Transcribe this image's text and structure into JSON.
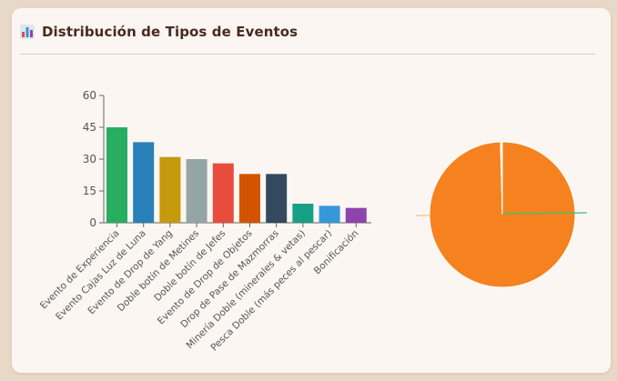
{
  "card": {
    "title": "Distribución de Tipos de Eventos",
    "icon": "bar-chart-icon"
  },
  "chart_data": [
    {
      "type": "bar",
      "title": "",
      "xlabel": "",
      "ylabel": "",
      "ylim": [
        0,
        60
      ],
      "yticks": [
        0,
        15,
        30,
        45,
        60
      ],
      "categories": [
        "Evento de Experiencia",
        "Evento Cajas Luz de Luna",
        "Evento de Drop de Yang",
        "Doble botín de Metines",
        "Doble botín de Jefes",
        "Evento de Drop de Objetos",
        "Drop de Pase de Mazmorras",
        "Minería Doble (minerales & vetas)",
        "Pesca Doble (más peces al pescar)",
        "Bonificación"
      ],
      "values": [
        45,
        38,
        31,
        30,
        28,
        23,
        23,
        9,
        8,
        7
      ],
      "colors": [
        "#27ae60",
        "#2980b9",
        "#c49a0c",
        "#95a5a6",
        "#e74c3c",
        "#d35400",
        "#34495e",
        "#16a085",
        "#3498db",
        "#8e44ad"
      ]
    },
    {
      "type": "pie",
      "values": [
        99.6,
        0.2,
        0.2
      ],
      "colors": [
        "#f5821f",
        "#2ecc71",
        "#f0c080"
      ]
    }
  ]
}
